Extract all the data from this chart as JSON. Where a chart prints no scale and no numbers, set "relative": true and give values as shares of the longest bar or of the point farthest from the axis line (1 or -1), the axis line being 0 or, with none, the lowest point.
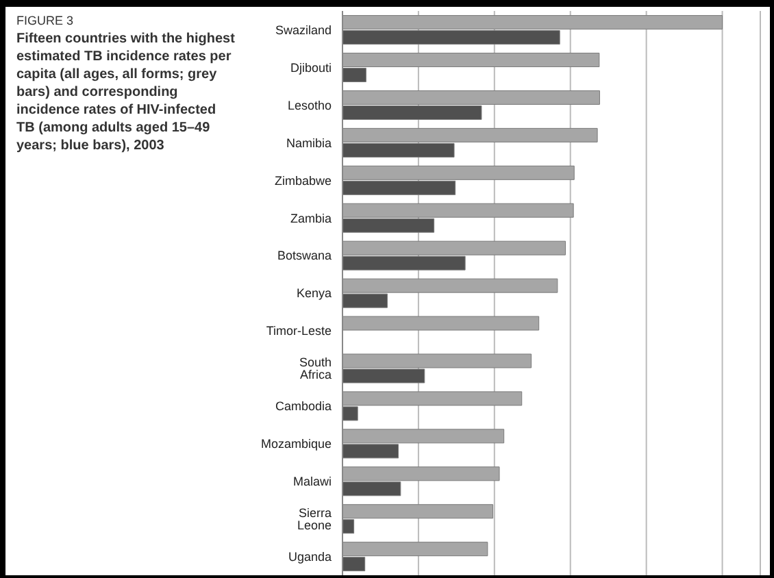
{
  "chart_data": {
    "type": "bar",
    "orientation": "horizontal",
    "relative": true,
    "title": "FIGURE 3",
    "subtitle": "Fifteen countries with the highest estimated TB incidence rates per capita (all ages, all forms; grey bars) and corresponding incidence rates of HIV-infected TB (among adults aged 15–49 years; blue bars), 2003",
    "grid": "x",
    "legend": false,
    "categories": [
      "Swaziland",
      "Djibouti",
      "Lesotho",
      "Namibia",
      "Zimbabwe",
      "Zambia",
      "Botswana",
      "Kenya",
      "Timor-Leste",
      "South Africa",
      "Cambodia",
      "Mozambique",
      "Malawi",
      "Sierra Leone",
      "Uganda"
    ],
    "series": [
      {
        "color": "#a6a6a6",
        "values": [
          1,
          0.676,
          0.677,
          0.671,
          0.61,
          0.608,
          0.587,
          0.566,
          0.517,
          0.497,
          0.472,
          0.425,
          0.413,
          0.396,
          0.382
        ]
      },
      {
        "color": "#505050",
        "values": [
          0.572,
          0.062,
          0.366,
          0.294,
          0.297,
          0.241,
          0.323,
          0.118,
          null,
          0.216,
          0.04,
          0.147,
          0.153,
          0.03,
          0.059
        ]
      }
    ]
  }
}
